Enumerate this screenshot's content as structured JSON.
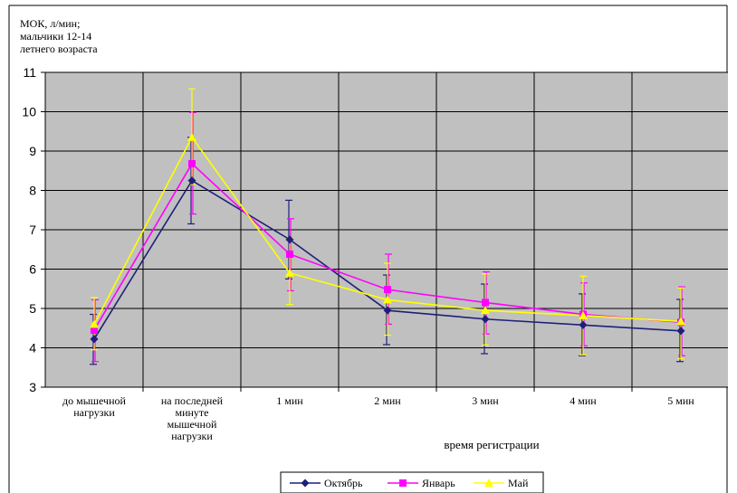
{
  "chart_data": {
    "type": "line",
    "ylabel_lines": [
      "МОК, л/мин;",
      "мальчики 12-14",
      "летнего возраста"
    ],
    "xlabel": "время регистрации",
    "categories": [
      [
        "до мышечной",
        "нагрузки"
      ],
      [
        "на последней",
        "минуте",
        "мышечной",
        "нагрузки"
      ],
      [
        "1 мин"
      ],
      [
        "2 мин"
      ],
      [
        "3 мин"
      ],
      [
        "4 мин"
      ],
      [
        "5 мин"
      ]
    ],
    "ylim": [
      3,
      11
    ],
    "yticks": [
      "3",
      "4",
      "5",
      "6",
      "7",
      "8",
      "9",
      "10",
      "11"
    ],
    "grid": true,
    "legend_position": "bottom",
    "series": [
      {
        "name": "Октябрь",
        "color": "#1f1f7a",
        "marker": "diamond",
        "values": [
          4.22,
          8.25,
          6.75,
          4.95,
          4.73,
          4.58,
          4.43
        ],
        "err_low": [
          3.58,
          7.15,
          5.75,
          4.08,
          3.85,
          3.8,
          3.65
        ],
        "err_high": [
          4.85,
          9.35,
          7.75,
          5.85,
          5.62,
          5.37,
          5.23
        ]
      },
      {
        "name": "Январь",
        "color": "#ff00ff",
        "marker": "square",
        "values": [
          4.45,
          8.68,
          6.38,
          5.48,
          5.15,
          4.85,
          4.65
        ],
        "err_low": [
          3.65,
          7.4,
          5.45,
          4.6,
          4.35,
          4.05,
          3.8
        ],
        "err_high": [
          5.22,
          9.98,
          7.28,
          6.38,
          5.93,
          5.65,
          5.55
        ]
      },
      {
        "name": "Май",
        "color": "#ffff00",
        "marker": "triangle",
        "values": [
          4.6,
          9.35,
          5.9,
          5.22,
          4.95,
          4.82,
          4.67
        ],
        "err_low": [
          3.95,
          8.15,
          5.1,
          4.32,
          4.07,
          3.82,
          3.72
        ],
        "err_high": [
          5.28,
          10.58,
          6.78,
          6.15,
          5.88,
          5.82,
          5.52
        ]
      }
    ]
  }
}
